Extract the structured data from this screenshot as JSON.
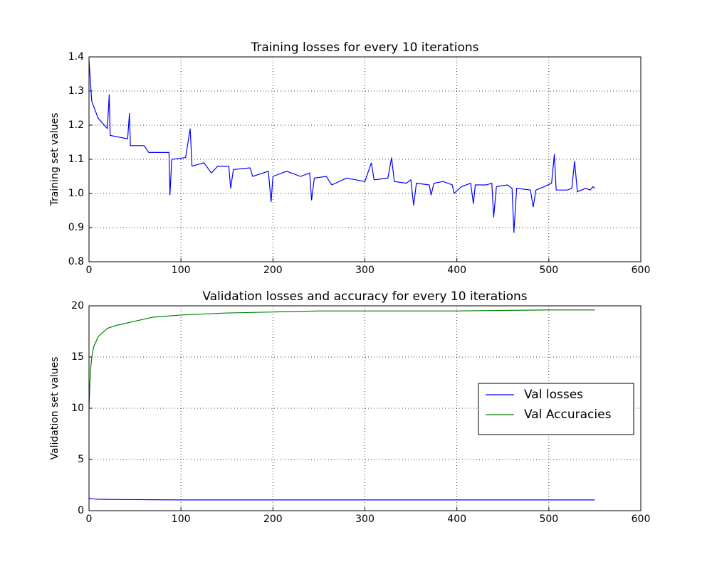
{
  "chart_data": [
    {
      "type": "line",
      "title": "Training losses for every 10 iterations",
      "y_label": "Training set values",
      "xlim": [
        0,
        600
      ],
      "ylim": [
        0.8,
        1.4
      ],
      "xticks": [
        0,
        100,
        200,
        300,
        400,
        500,
        600
      ],
      "yticks": [
        0.8,
        0.9,
        {
          "value": 1,
          "label": "1.0"
        },
        1.1,
        1.2,
        1.3,
        1.4
      ],
      "grid": true,
      "x": [
        0,
        3,
        10,
        20,
        22,
        23,
        42,
        44,
        45,
        60,
        65,
        87,
        88,
        90,
        105,
        110,
        112,
        125,
        133,
        140,
        152,
        154,
        157,
        175,
        178,
        195,
        198,
        200,
        215,
        230,
        240,
        242,
        245,
        258,
        264,
        280,
        300,
        307,
        310,
        325,
        329,
        332,
        345,
        350,
        353,
        356,
        370,
        372,
        375,
        385,
        395,
        397,
        405,
        415,
        418,
        420,
        432,
        438,
        440,
        443,
        455,
        460,
        462,
        465,
        480,
        483,
        486,
        495,
        503,
        506,
        508,
        520,
        525,
        528,
        531,
        540,
        545,
        548,
        550
      ],
      "series": [
        {
          "name": "Training losses",
          "color": "#0000ff",
          "values": [
            1.39,
            1.27,
            1.22,
            1.19,
            1.29,
            1.17,
            1.16,
            1.235,
            1.14,
            1.14,
            1.12,
            1.12,
            0.995,
            1.1,
            1.105,
            1.19,
            1.08,
            1.09,
            1.06,
            1.08,
            1.08,
            1.015,
            1.07,
            1.075,
            1.05,
            1.065,
            0.975,
            1.05,
            1.065,
            1.05,
            1.06,
            0.98,
            1.045,
            1.05,
            1.025,
            1.045,
            1.035,
            1.09,
            1.04,
            1.045,
            1.105,
            1.035,
            1.03,
            1.04,
            0.965,
            1.03,
            1.025,
            0.995,
            1.03,
            1.035,
            1.025,
            1.0,
            1.02,
            1.03,
            0.97,
            1.025,
            1.025,
            1.03,
            0.93,
            1.02,
            1.025,
            1.015,
            0.885,
            1.015,
            1.01,
            0.96,
            1.01,
            1.02,
            1.03,
            1.115,
            1.01,
            1.01,
            1.015,
            1.095,
            1.005,
            1.015,
            1.01,
            1.02,
            1.015
          ]
        }
      ]
    },
    {
      "type": "line",
      "title": "Validation losses and accuracy for every 10 iterations",
      "y_label": "Validation set values",
      "xlim": [
        0,
        600
      ],
      "ylim": [
        0,
        20
      ],
      "xticks": [
        0,
        100,
        200,
        300,
        400,
        500,
        600
      ],
      "yticks": [
        0,
        5,
        10,
        15,
        20
      ],
      "grid": true,
      "legend": "center right",
      "x": [
        0,
        1,
        2,
        3,
        5,
        10,
        20,
        30,
        50,
        70,
        100,
        150,
        200,
        250,
        300,
        400,
        500,
        550
      ],
      "series": [
        {
          "name": "Val losses",
          "color": "#0000ff",
          "values": [
            1.25,
            1.2,
            1.18,
            1.16,
            1.15,
            1.12,
            1.1,
            1.09,
            1.08,
            1.07,
            1.05,
            1.05,
            1.05,
            1.05,
            1.05,
            1.05,
            1.05,
            1.05
          ]
        },
        {
          "name": "Val Accuracies",
          "color": "#008000",
          "values": [
            10,
            12.5,
            14,
            15,
            16,
            17,
            17.8,
            18.1,
            18.5,
            18.9,
            19.1,
            19.3,
            19.4,
            19.5,
            19.5,
            19.5,
            19.6,
            19.6
          ]
        }
      ]
    }
  ]
}
